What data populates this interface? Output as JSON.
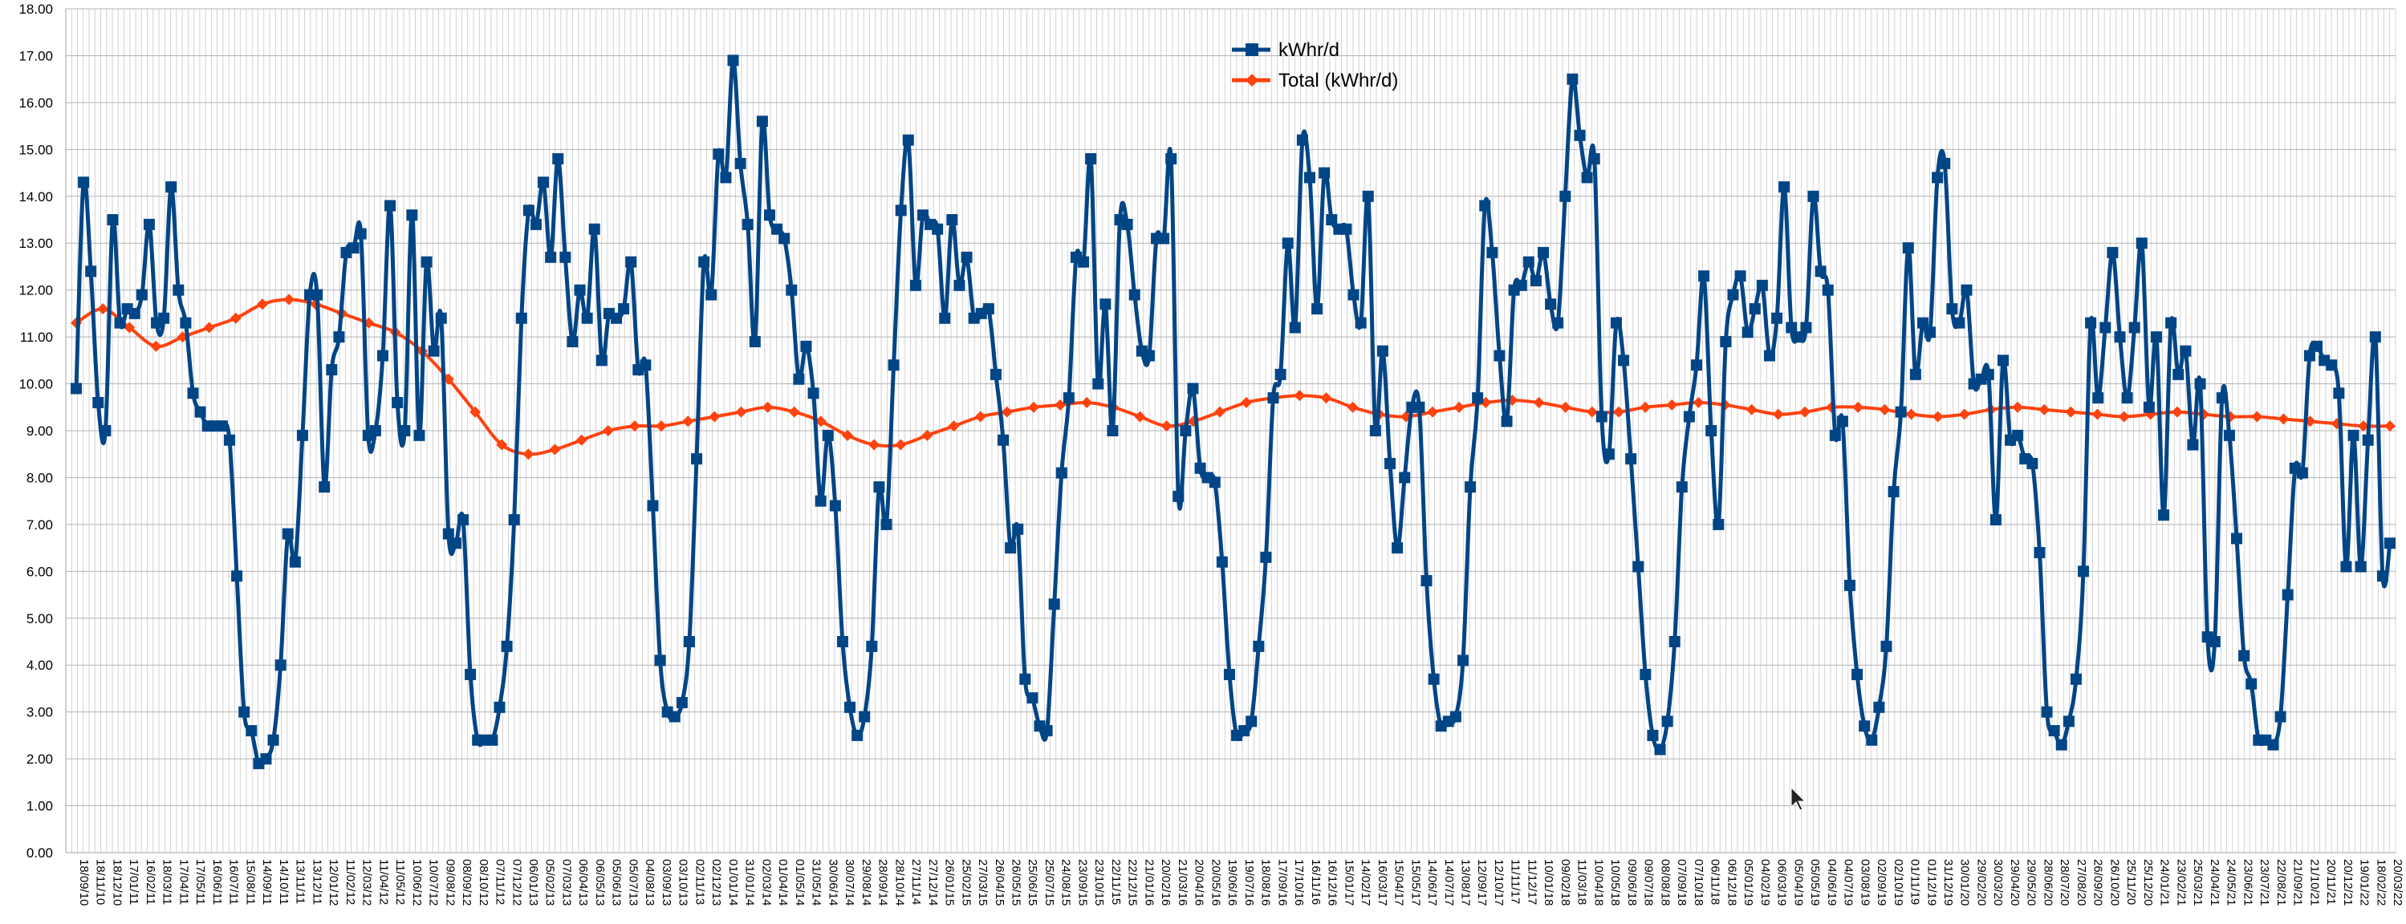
{
  "chart_data": {
    "type": "line",
    "ylim": [
      0,
      18
    ],
    "y_ticks": [
      "0.00",
      "1.00",
      "2.00",
      "3.00",
      "4.00",
      "5.00",
      "6.00",
      "7.00",
      "8.00",
      "9.00",
      "10.00",
      "11.00",
      "12.00",
      "13.00",
      "14.00",
      "15.00",
      "16.00",
      "17.00",
      "18.00"
    ],
    "grid": true,
    "legend_position": "top-center",
    "x_tick_labels": [
      "18/09/10",
      "18/11/10",
      "18/12/10",
      "17/01/11",
      "16/02/11",
      "18/03/11",
      "17/04/11",
      "17/05/11",
      "16/06/11",
      "16/07/11",
      "15/08/11",
      "14/09/11",
      "14/10/11",
      "13/11/11",
      "13/12/11",
      "12/01/12",
      "11/02/12",
      "12/03/12",
      "11/04/12",
      "11/05/12",
      "10/06/12",
      "10/07/12",
      "09/08/12",
      "08/09/12",
      "08/10/12",
      "07/11/12",
      "07/12/12",
      "06/01/13",
      "05/02/13",
      "07/03/13",
      "06/04/13",
      "06/05/13",
      "05/06/13",
      "05/07/13",
      "04/08/13",
      "03/09/13",
      "03/10/13",
      "02/11/13",
      "02/12/13",
      "01/01/14",
      "31/01/14",
      "02/03/14",
      "01/04/14",
      "01/05/14",
      "31/05/14",
      "30/06/14",
      "30/07/14",
      "29/08/14",
      "28/09/14",
      "28/10/14",
      "27/11/14",
      "27/12/14",
      "26/01/15",
      "25/02/15",
      "27/03/15",
      "26/04/15",
      "26/05/15",
      "25/06/15",
      "25/07/15",
      "24/08/15",
      "23/09/15",
      "23/10/15",
      "22/11/15",
      "22/12/15",
      "21/01/16",
      "20/02/16",
      "21/03/16",
      "20/04/16",
      "20/05/16",
      "19/06/16",
      "19/07/16",
      "18/08/16",
      "17/09/16",
      "17/10/16",
      "16/11/16",
      "16/12/16",
      "15/01/17",
      "14/02/17",
      "16/03/17",
      "15/04/17",
      "15/05/17",
      "14/06/17",
      "14/07/17",
      "13/08/17",
      "12/09/17",
      "12/10/17",
      "11/11/17",
      "11/12/17",
      "10/01/18",
      "09/02/18",
      "11/03/18",
      "10/04/18",
      "10/05/18",
      "09/06/18",
      "09/07/18",
      "08/08/18",
      "07/09/18",
      "07/10/18",
      "06/11/18",
      "06/12/18",
      "05/01/19",
      "04/02/19",
      "06/03/19",
      "05/04/19",
      "05/05/19",
      "04/06/19",
      "04/07/19",
      "03/08/19",
      "02/09/19",
      "02/10/19",
      "01/11/19",
      "01/12/19",
      "31/12/19",
      "30/01/20",
      "29/02/20",
      "30/03/20",
      "29/04/20",
      "29/05/20",
      "28/06/20",
      "28/07/20",
      "27/08/20",
      "26/09/20",
      "26/10/20",
      "25/11/20",
      "25/12/20",
      "24/01/21",
      "23/02/21",
      "25/03/21",
      "24/04/21",
      "24/05/21",
      "23/06/21",
      "23/07/21",
      "22/08/21",
      "21/09/21",
      "21/10/21",
      "20/11/21",
      "20/12/21",
      "19/01/22",
      "18/02/22",
      "20/03/22"
    ],
    "series": [
      {
        "name": "kWhr/d",
        "color": "#004586",
        "marker": "square",
        "values": [
          9.9,
          14.3,
          12.4,
          9.6,
          9.0,
          13.5,
          11.3,
          11.6,
          11.5,
          11.9,
          13.4,
          11.3,
          11.4,
          14.2,
          12.0,
          11.3,
          9.8,
          9.4,
          9.1,
          9.1,
          9.1,
          8.8,
          5.9,
          3.0,
          2.6,
          1.9,
          2.0,
          2.4,
          4.0,
          6.8,
          6.2,
          8.9,
          11.9,
          11.9,
          7.8,
          10.3,
          11.0,
          12.8,
          12.9,
          13.2,
          8.9,
          9.0,
          10.6,
          13.8,
          9.6,
          9.0,
          13.6,
          8.9,
          12.6,
          10.7,
          11.4,
          6.8,
          6.6,
          7.1,
          3.8,
          2.4,
          2.4,
          2.4,
          3.1,
          4.4,
          7.1,
          11.4,
          13.7,
          13.4,
          14.3,
          12.7,
          14.8,
          12.7,
          10.9,
          12.0,
          11.4,
          13.3,
          10.5,
          11.5,
          11.4,
          11.6,
          12.6,
          10.3,
          10.4,
          7.4,
          4.1,
          3.0,
          2.9,
          3.2,
          4.5,
          8.4,
          12.6,
          11.9,
          14.9,
          14.4,
          16.9,
          14.7,
          13.4,
          10.9,
          15.6,
          13.6,
          13.3,
          13.1,
          12.0,
          10.1,
          10.8,
          9.8,
          7.5,
          8.9,
          7.4,
          4.5,
          3.1,
          2.5,
          2.9,
          4.4,
          7.8,
          7.0,
          10.4,
          13.7,
          15.2,
          12.1,
          13.6,
          13.4,
          13.3,
          11.4,
          13.5,
          12.1,
          12.7,
          11.4,
          11.5,
          11.6,
          10.2,
          8.8,
          6.5,
          6.9,
          3.7,
          3.3,
          2.7,
          2.6,
          5.3,
          8.1,
          9.7,
          12.7,
          12.6,
          14.8,
          10.0,
          11.7,
          9.0,
          13.5,
          13.4,
          11.9,
          10.7,
          10.6,
          13.1,
          13.1,
          14.8,
          7.6,
          9.0,
          9.9,
          8.2,
          8.0,
          7.9,
          6.2,
          3.8,
          2.5,
          2.6,
          2.8,
          4.4,
          6.3,
          9.7,
          10.2,
          13.0,
          11.2,
          15.2,
          14.4,
          11.6,
          14.5,
          13.5,
          13.3,
          13.3,
          11.9,
          11.3,
          14.0,
          9.0,
          10.7,
          8.3,
          6.5,
          8.0,
          9.5,
          9.5,
          5.8,
          3.7,
          2.7,
          2.8,
          2.9,
          4.1,
          7.8,
          9.7,
          13.8,
          12.8,
          10.6,
          9.2,
          12.0,
          12.1,
          12.6,
          12.2,
          12.8,
          11.7,
          11.3,
          14.0,
          16.5,
          15.3,
          14.4,
          14.8,
          9.3,
          8.5,
          11.3,
          10.5,
          8.4,
          6.1,
          3.8,
          2.5,
          2.2,
          2.8,
          4.5,
          7.8,
          9.3,
          10.4,
          12.3,
          9.0,
          7.0,
          10.9,
          11.9,
          12.3,
          11.1,
          11.6,
          12.1,
          10.6,
          11.4,
          14.2,
          11.2,
          11.0,
          11.2,
          14.0,
          12.4,
          12.0,
          8.9,
          9.2,
          5.7,
          3.8,
          2.7,
          2.4,
          3.1,
          4.4,
          7.7,
          9.4,
          12.9,
          10.2,
          11.3,
          11.1,
          14.4,
          14.7,
          11.6,
          11.3,
          12.0,
          10.0,
          10.1,
          10.2,
          7.1,
          10.5,
          8.8,
          8.9,
          8.4,
          8.3,
          6.4,
          3.0,
          2.6,
          2.3,
          2.8,
          3.7,
          6.0,
          11.3,
          9.7,
          11.2,
          12.8,
          11.0,
          9.7,
          11.2,
          13.0,
          9.5,
          11.0,
          7.2,
          11.3,
          10.2,
          10.7,
          8.7,
          10.0,
          4.6,
          4.5,
          9.7,
          8.9,
          6.7,
          4.2,
          3.6,
          2.4,
          2.4,
          2.3,
          2.9,
          5.5,
          8.2,
          8.1,
          10.6,
          10.8,
          10.5,
          10.4,
          9.8,
          6.1,
          8.9,
          6.1,
          8.8,
          11.0,
          5.9,
          6.6
        ]
      },
      {
        "name": "Total (kWhr/d)",
        "color": "#ff420e",
        "marker": "diamond",
        "values": [
          11.3,
          11.6,
          11.2,
          10.8,
          11.0,
          11.2,
          11.4,
          11.7,
          11.8,
          11.7,
          11.5,
          11.3,
          11.1,
          10.7,
          10.1,
          9.4,
          8.7,
          8.5,
          8.6,
          8.8,
          9.0,
          9.1,
          9.1,
          9.2,
          9.3,
          9.4,
          9.5,
          9.4,
          9.2,
          8.9,
          8.7,
          8.7,
          8.9,
          9.1,
          9.3,
          9.4,
          9.5,
          9.55,
          9.6,
          9.5,
          9.3,
          9.1,
          9.2,
          9.4,
          9.6,
          9.7,
          9.75,
          9.7,
          9.5,
          9.35,
          9.3,
          9.4,
          9.5,
          9.6,
          9.65,
          9.6,
          9.5,
          9.4,
          9.4,
          9.5,
          9.55,
          9.6,
          9.55,
          9.45,
          9.35,
          9.4,
          9.5,
          9.5,
          9.45,
          9.35,
          9.3,
          9.35,
          9.45,
          9.5,
          9.45,
          9.4,
          9.35,
          9.3,
          9.35,
          9.4,
          9.35,
          9.3,
          9.3,
          9.25,
          9.2,
          9.15,
          9.1,
          9.1
        ]
      }
    ]
  }
}
